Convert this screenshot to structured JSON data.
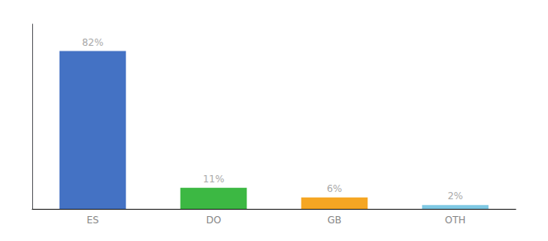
{
  "chart_data": {
    "type": "bar",
    "categories": [
      "ES",
      "DO",
      "GB",
      "OTH"
    ],
    "values": [
      82,
      11,
      6,
      2
    ],
    "value_labels": [
      "82%",
      "11%",
      "6%",
      "2%"
    ],
    "colors": [
      "#4472c4",
      "#3cb843",
      "#f5a623",
      "#7ec8e3"
    ],
    "ylim": [
      0,
      96
    ],
    "grid": false,
    "data_labels": true,
    "tick_labels": "x"
  }
}
